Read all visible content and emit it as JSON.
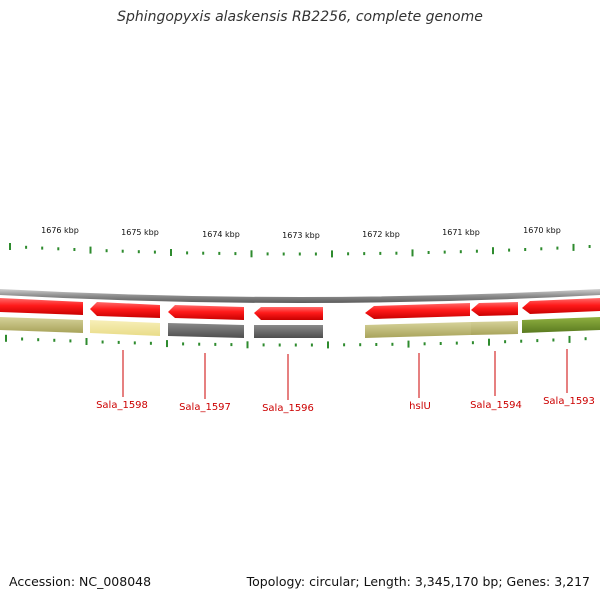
{
  "title": "Sphingopyxis alaskensis RB2256, complete genome",
  "accession": "Accession: NC_008048",
  "summary": "Topology: circular; Length: 3,345,170 bp; Genes: 3,217",
  "scale_labels": [
    "1676 kbp",
    "1675 kbp",
    "1674 kbp",
    "1673 kbp",
    "1672 kbp",
    "1671 kbp",
    "1670 kbp"
  ],
  "gene_labels": [
    "Sala_1598",
    "Sala_1597",
    "Sala_1596",
    "hslU",
    "Sala_1594",
    "Sala_1593"
  ],
  "colors": {
    "cds": "#ff2a2a",
    "backbone": "#8a8a8a",
    "tick": "#2e8b2e",
    "label": "#cc0000",
    "track": [
      "#b9b46a",
      "#f2e7a0",
      "#666666",
      "#666666",
      "#b9b46a",
      "#b9b46a",
      "#6f8f2a"
    ]
  }
}
